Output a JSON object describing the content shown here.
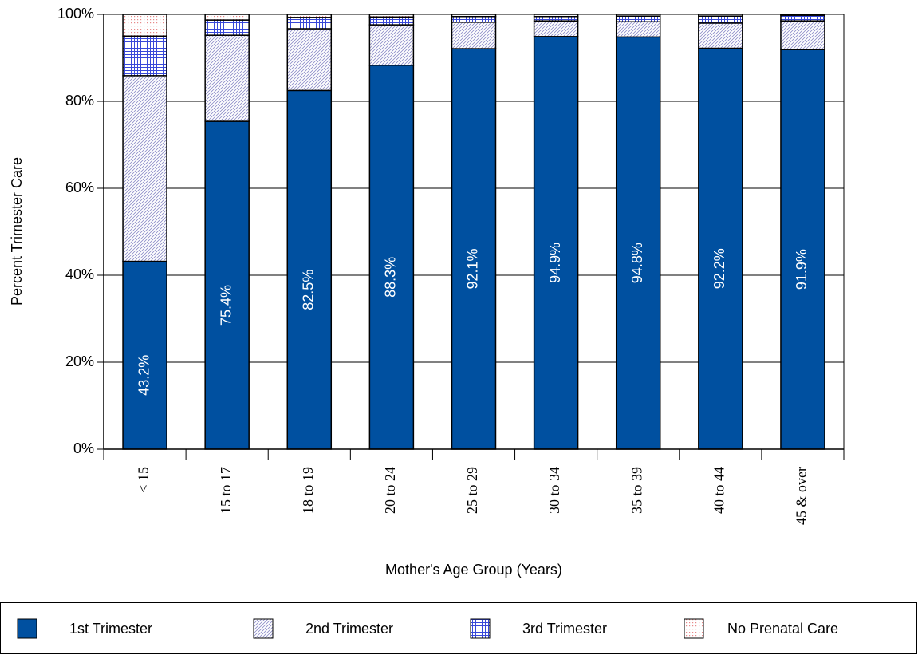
{
  "chart_data": {
    "type": "stacked_bar",
    "x_label": "Mother's Age Group (Years)",
    "y_label": "Percent Trimester Care",
    "categories": [
      "< 15",
      "15 to 17",
      "18 to 19",
      "20 to 24",
      "25 to 29",
      "30 to 34",
      "35 to 39",
      "40 to 44",
      "45 & over"
    ],
    "series": [
      {
        "name": "1st Trimester",
        "color": "#0050a0",
        "values": [
          43.2,
          75.4,
          82.5,
          88.3,
          92.1,
          94.9,
          94.8,
          92.2,
          91.9
        ],
        "value_labels": [
          "43.2%",
          "75.4%",
          "82.5%",
          "88.3%",
          "92.1%",
          "94.9%",
          "94.8%",
          "92.2%",
          "91.9%"
        ]
      },
      {
        "name": "2nd Trimester",
        "color": "#8c8cc8",
        "values": [
          42.7,
          19.8,
          14.2,
          9.3,
          6.1,
          3.6,
          3.5,
          5.8,
          6.6
        ]
      },
      {
        "name": "3rd Trimester",
        "color": "#3848d8",
        "values": [
          9.1,
          3.5,
          2.6,
          1.8,
          1.3,
          1.0,
          1.3,
          1.6,
          1.3
        ]
      },
      {
        "name": "No Prenatal Care",
        "color": "#e88888",
        "values": [
          5.0,
          1.3,
          0.7,
          0.6,
          0.5,
          0.5,
          0.4,
          0.4,
          0.2
        ]
      }
    ],
    "ylim": [
      0,
      100
    ],
    "yticks": [
      {
        "value": 0,
        "label": "0%"
      },
      {
        "value": 20,
        "label": "20%"
      },
      {
        "value": 40,
        "label": "40%"
      },
      {
        "value": 60,
        "label": "60%"
      },
      {
        "value": 80,
        "label": "80%"
      },
      {
        "value": 100,
        "label": "100%"
      }
    ],
    "grid": true,
    "legend": "bottom"
  }
}
